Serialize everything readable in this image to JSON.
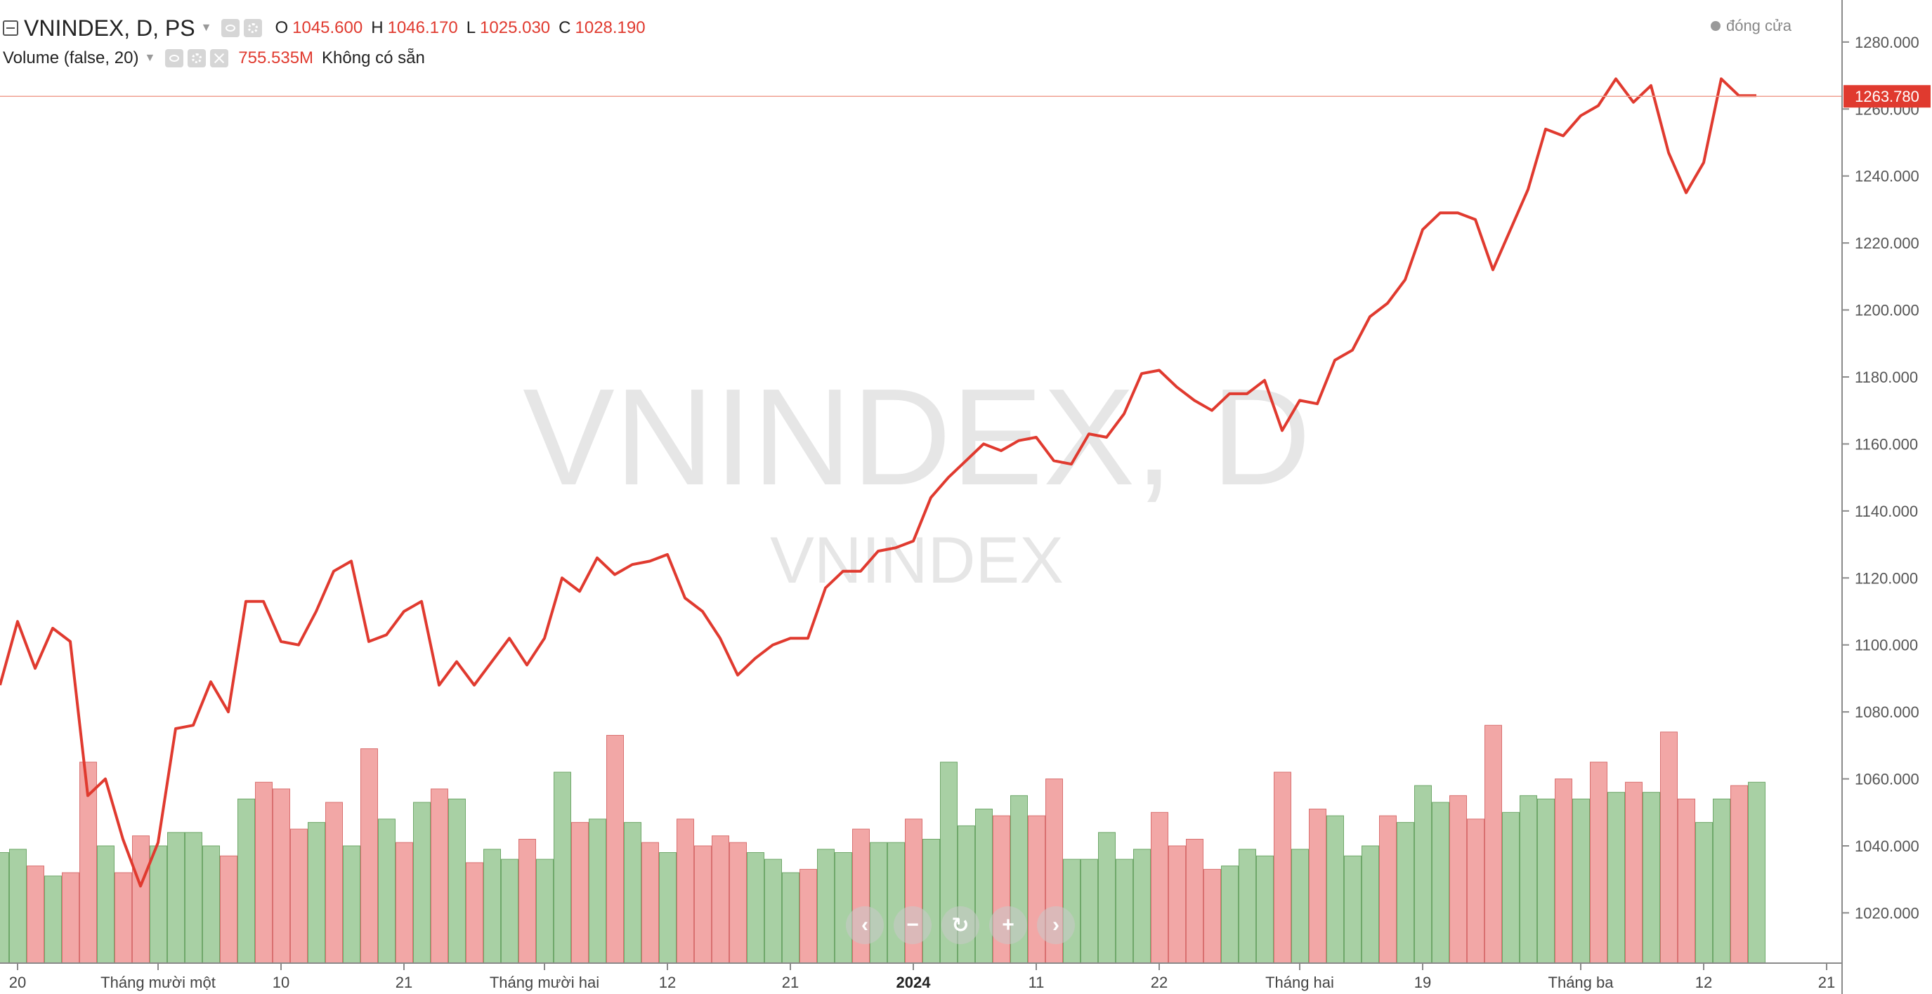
{
  "legend": {
    "symbol": "VNINDEX, D, PS",
    "ohlc": [
      {
        "key": "O",
        "value": "1045.600"
      },
      {
        "key": "H",
        "value": "1046.170"
      },
      {
        "key": "L",
        "value": "1025.030"
      },
      {
        "key": "C",
        "value": "1028.190"
      }
    ],
    "volume_title": "Volume (false, 20)",
    "volume_value": "755.535M",
    "volume_na": "Không có sẵn"
  },
  "status": "đóng cửa",
  "watermark": {
    "main": "VNINDEX, D",
    "sub": "VNINDEX"
  },
  "last_price_label": "1263.780",
  "colors": {
    "line": "#e03a2f",
    "vol_up": "#a8d0a4",
    "vol_down": "#f2a7a6",
    "vol_up_edge": "#6fa86a",
    "vol_down_edge": "#d97070",
    "axis": "#8a8a8a"
  },
  "nav_buttons": [
    "‹",
    "−",
    "↻",
    "+",
    "›"
  ],
  "chart_data": {
    "type": "line",
    "title": "VNINDEX, D",
    "ylim": [
      1005,
      1285
    ],
    "y_ticks": [
      1280,
      1260,
      1240,
      1220,
      1200,
      1180,
      1160,
      1140,
      1120,
      1100,
      1080,
      1060,
      1040,
      1020
    ],
    "y_tick_labels": [
      "1280.000",
      "1260.000",
      "1240.000",
      "1220.000",
      "1200.000",
      "1180.000",
      "1160.000",
      "1140.000",
      "1120.000",
      "1100.000",
      "1080.000",
      "1060.000",
      "1040.000",
      "1020.000"
    ],
    "x_ticks": [
      {
        "i": 1,
        "label": "20",
        "bold": false
      },
      {
        "i": 9,
        "label": "Tháng mười một",
        "bold": false
      },
      {
        "i": 16,
        "label": "10",
        "bold": false
      },
      {
        "i": 23,
        "label": "21",
        "bold": false
      },
      {
        "i": 31,
        "label": "Tháng mười hai",
        "bold": false
      },
      {
        "i": 38,
        "label": "12",
        "bold": false
      },
      {
        "i": 45,
        "label": "21",
        "bold": false
      },
      {
        "i": 52,
        "label": "2024",
        "bold": true
      },
      {
        "i": 59,
        "label": "11",
        "bold": false
      },
      {
        "i": 66,
        "label": "22",
        "bold": false
      },
      {
        "i": 74,
        "label": "Tháng hai",
        "bold": false
      },
      {
        "i": 81,
        "label": "19",
        "bold": false
      },
      {
        "i": 90,
        "label": "Tháng ba",
        "bold": false
      },
      {
        "i": 97,
        "label": "12",
        "bold": false
      },
      {
        "i": 104,
        "label": "21",
        "bold": false
      }
    ],
    "series": [
      {
        "values": [
          1088,
          1107,
          1093,
          1105,
          1101,
          1055,
          1060,
          1042,
          1028,
          1041,
          1075,
          1076,
          1089,
          1080,
          1113,
          1113,
          1101,
          1100,
          1110,
          1122,
          1125,
          1101,
          1103,
          1110,
          1113,
          1088,
          1095,
          1088,
          1095,
          1102,
          1094,
          1102,
          1120,
          1116,
          1126,
          1121,
          1124,
          1125,
          1127,
          1114,
          1110,
          1102,
          1091,
          1096,
          1100,
          1102,
          1102,
          1117,
          1122,
          1122,
          1128,
          1129,
          1131,
          1144,
          1150,
          1155,
          1160,
          1158,
          1161,
          1162,
          1155,
          1154,
          1163,
          1162,
          1169,
          1181,
          1182,
          1177,
          1173,
          1170,
          1175,
          1175,
          1179,
          1164,
          1173,
          1172,
          1185,
          1188,
          1198,
          1202,
          1209,
          1224,
          1229,
          1229,
          1227,
          1212,
          1224,
          1236,
          1254,
          1252,
          1258,
          1261,
          1269,
          1262,
          1267,
          1247,
          1235,
          1244,
          1269,
          1264,
          1264
        ]
      }
    ],
    "volume": {
      "vol_min": 1005,
      "note": "volume bars plotted in price-axis units for visual height",
      "tops": [
        1038,
        1039,
        1034,
        1031,
        1032,
        1065,
        1040,
        1032,
        1043,
        1040,
        1044,
        1044,
        1040,
        1037,
        1054,
        1059,
        1057,
        1045,
        1047,
        1053,
        1040,
        1069,
        1048,
        1041,
        1053,
        1057,
        1054,
        1035,
        1039,
        1036,
        1042,
        1036,
        1062,
        1047,
        1048,
        1073,
        1047,
        1041,
        1038,
        1048,
        1040,
        1043,
        1041,
        1038,
        1036,
        1032,
        1033,
        1039,
        1038,
        1045,
        1041,
        1041,
        1048,
        1042,
        1065,
        1046,
        1051,
        1049,
        1055,
        1049,
        1060,
        1036,
        1036,
        1044,
        1036,
        1039,
        1050,
        1040,
        1042,
        1033,
        1034,
        1039,
        1037,
        1062,
        1039,
        1051,
        1049,
        1037,
        1040,
        1049,
        1047,
        1058,
        1053,
        1055,
        1048,
        1076,
        1050,
        1055,
        1054,
        1060,
        1054,
        1065,
        1056,
        1059,
        1056,
        1074,
        1054,
        1047,
        1054,
        1058,
        1059
      ],
      "up": [
        1,
        1,
        0,
        1,
        0,
        0,
        1,
        0,
        0,
        1,
        1,
        1,
        1,
        0,
        1,
        0,
        0,
        0,
        1,
        0,
        1,
        0,
        1,
        0,
        1,
        0,
        1,
        0,
        1,
        1,
        0,
        1,
        1,
        0,
        1,
        0,
        1,
        0,
        1,
        0,
        0,
        0,
        0,
        1,
        1,
        1,
        0,
        1,
        1,
        0,
        1,
        1,
        0,
        1,
        1,
        1,
        1,
        0,
        1,
        0,
        0,
        1,
        1,
        1,
        1,
        1,
        0,
        0,
        0,
        0,
        1,
        1,
        1,
        0,
        1,
        0,
        1,
        1,
        1,
        0,
        1,
        1,
        1,
        0,
        0,
        0,
        1,
        1,
        1,
        0,
        1,
        0,
        1,
        0,
        1,
        0,
        0,
        1,
        1,
        0,
        1
      ]
    }
  }
}
